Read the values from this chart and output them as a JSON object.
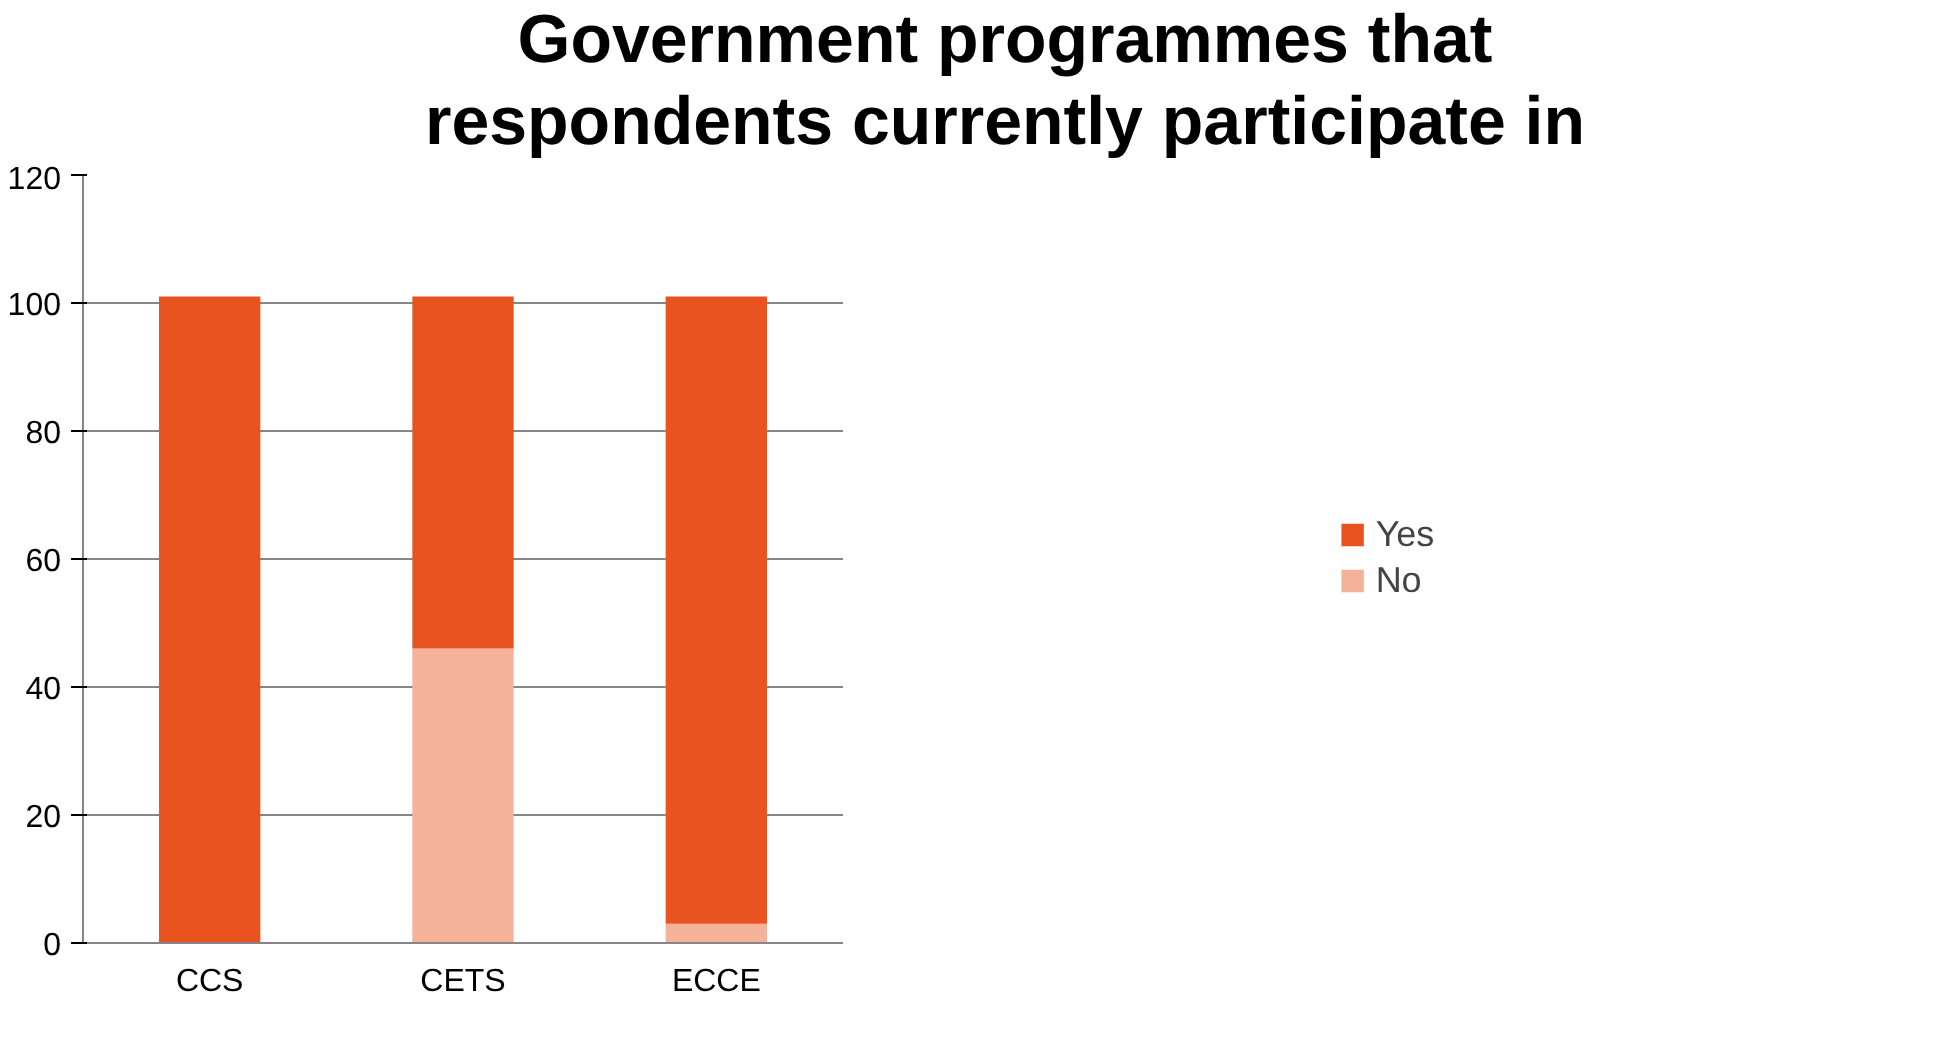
{
  "chart_data": {
    "type": "bar",
    "title": "Government programmes that\nrespondents currently participate in",
    "categories": [
      "CCS",
      "CETS",
      "ECCE"
    ],
    "stacked": true,
    "series": [
      {
        "name": "No",
        "color": "#f4b29a",
        "values": [
          0,
          46,
          3
        ]
      },
      {
        "name": "Yes",
        "color": "#e8531f",
        "values": [
          101,
          55,
          98
        ]
      }
    ],
    "ylim": [
      0,
      120
    ],
    "yticks": [
      0,
      20,
      40,
      60,
      80,
      100,
      120
    ],
    "grid": "y",
    "legend": "right"
  }
}
